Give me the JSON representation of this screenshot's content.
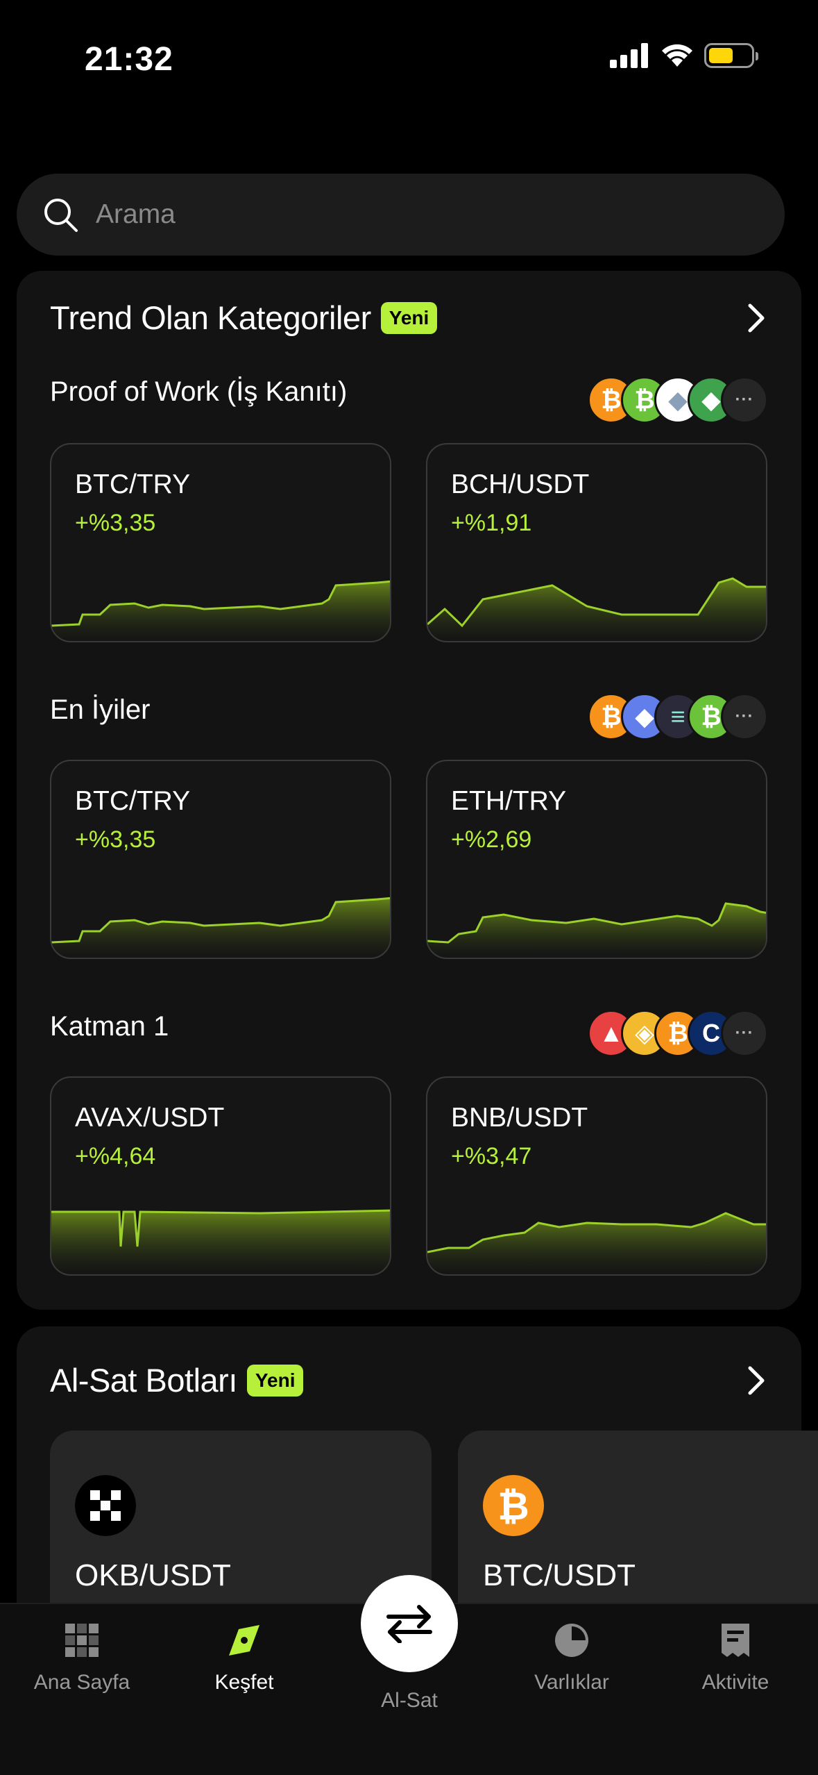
{
  "status": {
    "time": "21:32"
  },
  "search": {
    "placeholder": "Arama"
  },
  "trending": {
    "title": "Trend Olan Kategoriler",
    "badge": "Yeni",
    "categories": [
      {
        "title": "Proof of Work (İş Kanıtı)",
        "coins": [
          {
            "name": "bitcoin-icon",
            "color": "#f7931a",
            "glyph": "₿"
          },
          {
            "name": "bitcoin-cash-icon",
            "color": "#6bc33a",
            "glyph": "₿"
          },
          {
            "name": "ethereum-classic-icon",
            "color": "#ffffff",
            "glyph": "◆"
          },
          {
            "name": "ethereum-classic-green-icon",
            "color": "#3fa34d",
            "glyph": "◆"
          }
        ],
        "more": "···",
        "cards": [
          {
            "pair": "BTC/TRY",
            "change": "+%3,35"
          },
          {
            "pair": "BCH/USDT",
            "change": "+%1,91"
          }
        ]
      },
      {
        "title": "En İyiler",
        "coins": [
          {
            "name": "bitcoin-icon",
            "color": "#f7931a",
            "glyph": "₿"
          },
          {
            "name": "ethereum-icon",
            "color": "#627eea",
            "glyph": "◆"
          },
          {
            "name": "solana-icon",
            "color": "#2a2a3a",
            "glyph": "≡"
          },
          {
            "name": "bitcoin-cash-icon",
            "color": "#6bc33a",
            "glyph": "₿"
          }
        ],
        "more": "···",
        "cards": [
          {
            "pair": "BTC/TRY",
            "change": "+%3,35"
          },
          {
            "pair": "ETH/TRY",
            "change": "+%2,69"
          }
        ]
      },
      {
        "title": "Katman 1",
        "coins": [
          {
            "name": "avalanche-icon",
            "color": "#e84142",
            "glyph": "▲"
          },
          {
            "name": "bnb-icon",
            "color": "#f3ba2f",
            "glyph": "◈"
          },
          {
            "name": "bitcoin-icon",
            "color": "#f7931a",
            "glyph": "₿"
          },
          {
            "name": "cronos-icon",
            "color": "#0b2a66",
            "glyph": "C"
          }
        ],
        "more": "···",
        "cards": [
          {
            "pair": "AVAX/USDT",
            "change": "+%4,64"
          },
          {
            "pair": "BNB/USDT",
            "change": "+%3,47"
          }
        ]
      }
    ]
  },
  "bots": {
    "title": "Al-Sat Botları",
    "badge": "Yeni",
    "items": [
      {
        "pair": "OKB/USDT",
        "icon": "okb-icon"
      },
      {
        "pair": "BTC/USDT",
        "icon": "bitcoin-icon"
      }
    ]
  },
  "tabs": [
    {
      "label": "Ana Sayfa",
      "icon": "home-grid-icon"
    },
    {
      "label": "Keşfet",
      "icon": "compass-icon",
      "active": true
    },
    {
      "label": "Al-Sat",
      "icon": "swap-arrows-icon"
    },
    {
      "label": "Varlıklar",
      "icon": "pie-chart-icon"
    },
    {
      "label": "Aktivite",
      "icon": "receipt-icon"
    }
  ],
  "colors": {
    "accent": "#b7f03a",
    "background": "#000000",
    "card": "#131313"
  }
}
